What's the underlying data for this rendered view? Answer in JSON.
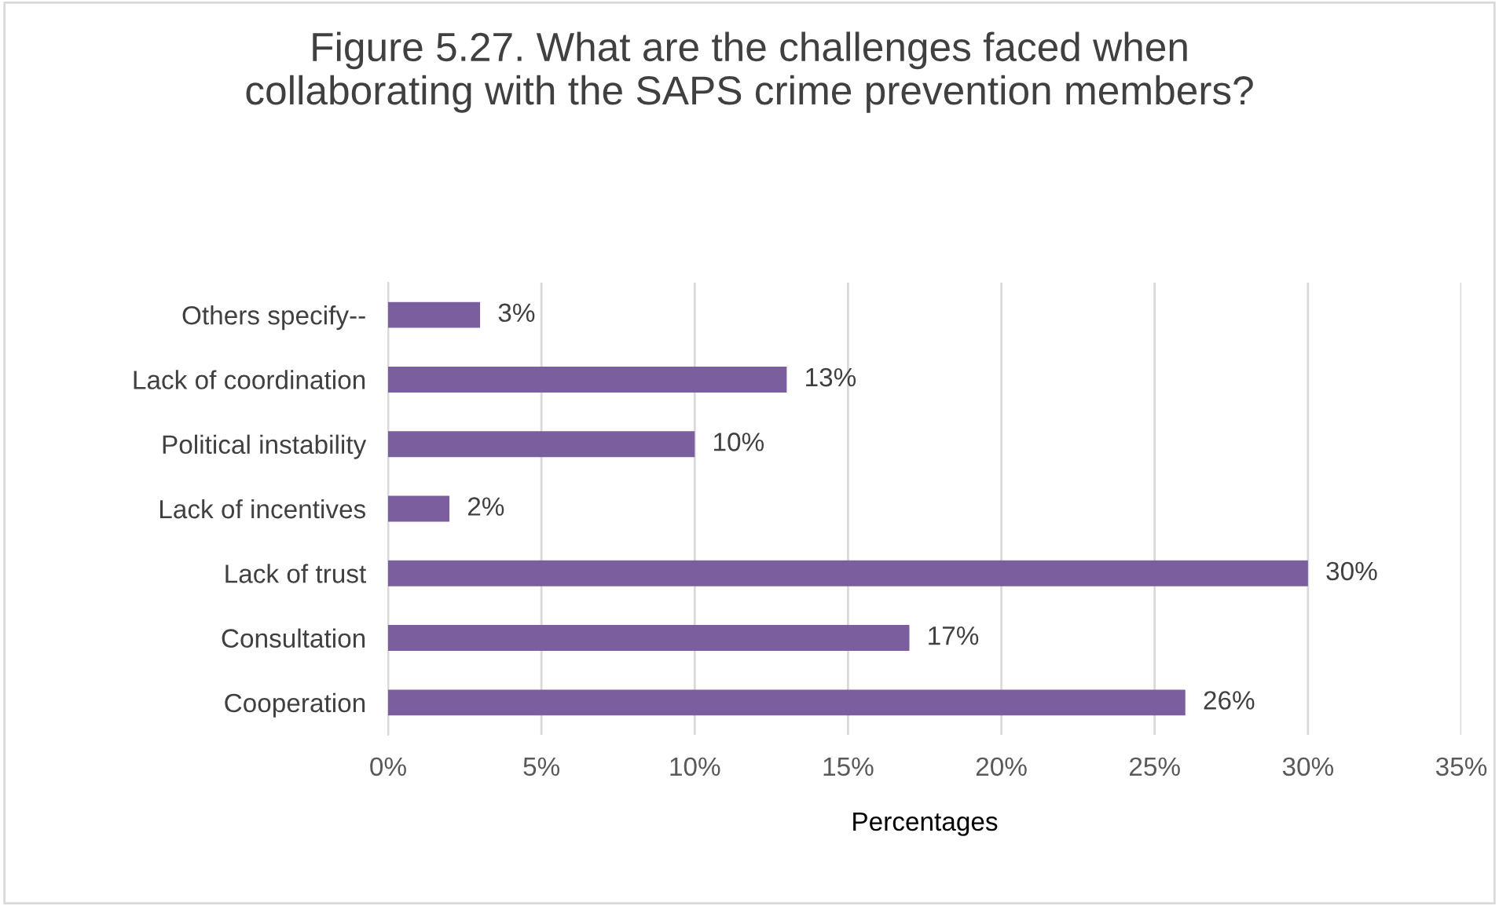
{
  "chart_data": {
    "type": "bar",
    "orientation": "horizontal",
    "title": "Figure 5.27. What are the challenges faced when\ncollaborating with the SAPS crime prevention members?",
    "xlabel": "Percentages",
    "categories": [
      "Others specify--",
      "Lack of coordination",
      "Political instability",
      "Lack of incentives",
      "Lack of trust",
      "Consultation",
      "Cooperation"
    ],
    "values": [
      3,
      13,
      10,
      2,
      30,
      17,
      26
    ],
    "value_labels": [
      "3%",
      "13%",
      "10%",
      "2%",
      "30%",
      "17%",
      "26%"
    ],
    "color": "#7b5e9e",
    "xlim": [
      0,
      35
    ],
    "xticks": [
      {
        "value": 0,
        "label": "0%"
      },
      {
        "value": 5,
        "label": "5%"
      },
      {
        "value": 10,
        "label": "10%"
      },
      {
        "value": 15,
        "label": "15%"
      },
      {
        "value": 20,
        "label": "20%"
      },
      {
        "value": 25,
        "label": "25%"
      },
      {
        "value": 30,
        "label": "30%"
      },
      {
        "value": 35,
        "label": "35%"
      }
    ],
    "grid": "x",
    "legend": false
  }
}
